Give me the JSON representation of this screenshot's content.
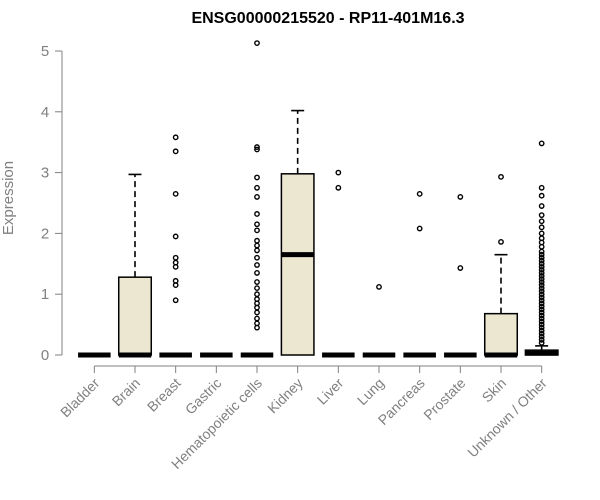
{
  "chart_data": {
    "type": "box",
    "title": "ENSG00000215520 - RP11-401M16.3",
    "xlabel": "",
    "ylabel": "Expression",
    "ylim": [
      0,
      5
    ],
    "yticks": [
      0,
      1,
      2,
      3,
      4,
      5
    ],
    "grid": false,
    "colors": {
      "box_fill": "#ece7d0",
      "box_stroke": "#000000",
      "axis": "#808080"
    },
    "categories": [
      "Bladder",
      "Brain",
      "Breast",
      "Gastric",
      "Hematopoietic cells",
      "Kidney",
      "Liver",
      "Lung",
      "Pancreas",
      "Prostate",
      "Skin",
      "Unknown / Other"
    ],
    "boxes": [
      {
        "category": "Bladder",
        "q1": 0,
        "median": 0,
        "q3": 0,
        "whisker_low": 0,
        "whisker_high": 0,
        "outliers": []
      },
      {
        "category": "Brain",
        "q1": 0,
        "median": 0,
        "q3": 1.28,
        "whisker_low": 0,
        "whisker_high": 2.97,
        "outliers": []
      },
      {
        "category": "Breast",
        "q1": 0,
        "median": 0,
        "q3": 0,
        "whisker_low": 0,
        "whisker_high": 0,
        "outliers": [
          0.9,
          1.15,
          1.22,
          1.45,
          1.52,
          1.6,
          1.95,
          2.65,
          3.35,
          3.58
        ]
      },
      {
        "category": "Gastric",
        "q1": 0,
        "median": 0,
        "q3": 0,
        "whisker_low": 0,
        "whisker_high": 0,
        "outliers": []
      },
      {
        "category": "Hematopoietic cells",
        "q1": 0,
        "median": 0,
        "q3": 0,
        "whisker_low": 0,
        "whisker_high": 0,
        "outliers": [
          0.45,
          0.52,
          0.6,
          0.7,
          0.78,
          0.85,
          0.92,
          1.0,
          1.1,
          1.2,
          1.35,
          1.48,
          1.6,
          1.72,
          1.8,
          1.88,
          2.05,
          2.15,
          2.32,
          2.6,
          2.75,
          2.92,
          3.38,
          3.42,
          5.13
        ]
      },
      {
        "category": "Kidney",
        "q1": 0,
        "median": 1.65,
        "q3": 2.98,
        "whisker_low": 0,
        "whisker_high": 4.02,
        "outliers": []
      },
      {
        "category": "Liver",
        "q1": 0,
        "median": 0,
        "q3": 0,
        "whisker_low": 0,
        "whisker_high": 0,
        "outliers": [
          2.75,
          3.0
        ]
      },
      {
        "category": "Lung",
        "q1": 0,
        "median": 0,
        "q3": 0,
        "whisker_low": 0,
        "whisker_high": 0,
        "outliers": [
          1.12
        ]
      },
      {
        "category": "Pancreas",
        "q1": 0,
        "median": 0,
        "q3": 0,
        "whisker_low": 0,
        "whisker_high": 0,
        "outliers": [
          2.08,
          2.65
        ]
      },
      {
        "category": "Prostate",
        "q1": 0,
        "median": 0,
        "q3": 0,
        "whisker_low": 0,
        "whisker_high": 0,
        "outliers": [
          1.43,
          2.6
        ]
      },
      {
        "category": "Skin",
        "q1": 0,
        "median": 0,
        "q3": 0.68,
        "whisker_low": 0,
        "whisker_high": 1.65,
        "outliers": [
          1.86,
          2.93
        ]
      },
      {
        "category": "Unknown / Other",
        "q1": 0,
        "median": 0.03,
        "q3": 0.08,
        "whisker_low": 0,
        "whisker_high": 0.15,
        "outliers": [
          0.2,
          0.25,
          0.3,
          0.35,
          0.4,
          0.45,
          0.5,
          0.55,
          0.6,
          0.65,
          0.7,
          0.75,
          0.8,
          0.85,
          0.9,
          0.95,
          1.0,
          1.05,
          1.1,
          1.15,
          1.2,
          1.25,
          1.3,
          1.35,
          1.4,
          1.45,
          1.5,
          1.55,
          1.6,
          1.65,
          1.7,
          1.78,
          1.85,
          1.92,
          2.0,
          2.1,
          2.2,
          2.3,
          2.45,
          2.62,
          2.75,
          3.48
        ]
      }
    ]
  }
}
